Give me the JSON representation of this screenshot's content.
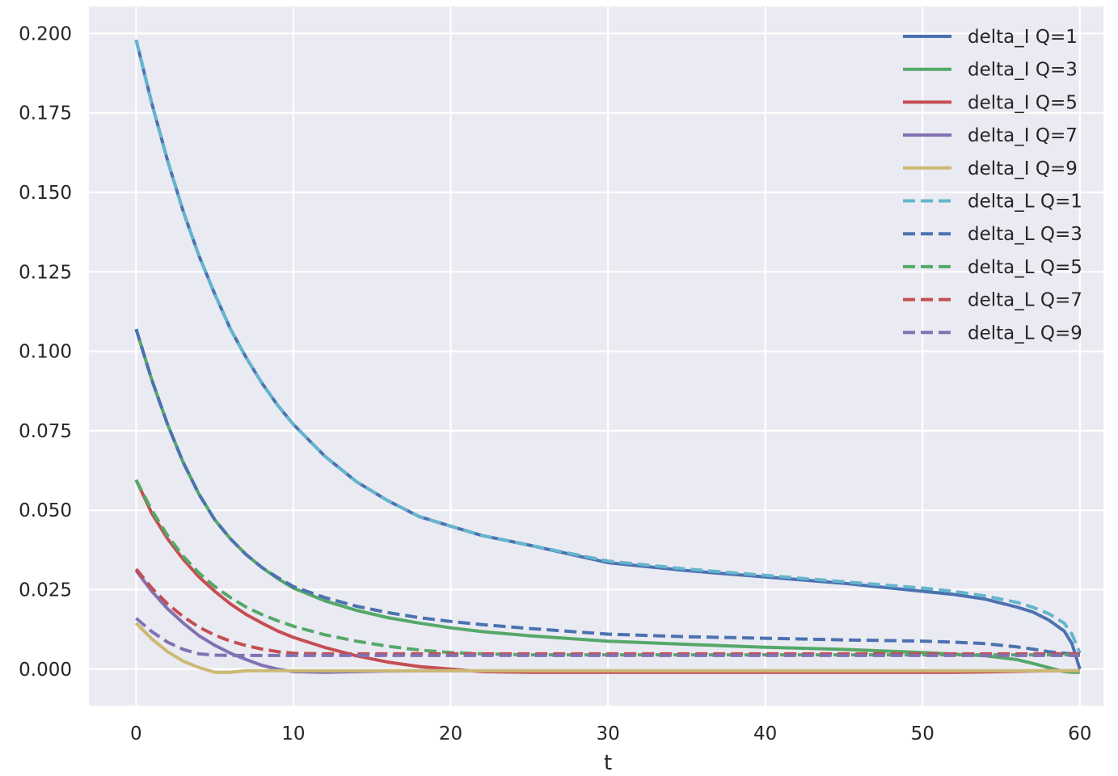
{
  "chart_data": {
    "type": "line",
    "title": "",
    "xlabel": "t",
    "ylabel": "",
    "xlim": [
      -3,
      61.5
    ],
    "ylim": [
      -0.0115,
      0.2085
    ],
    "xticks": [
      0,
      10,
      20,
      30,
      40,
      50,
      60
    ],
    "xtick_labels": [
      "0",
      "10",
      "20",
      "30",
      "40",
      "50",
      "60"
    ],
    "yticks": [
      0.0,
      0.025,
      0.05,
      0.075,
      0.1,
      0.125,
      0.15,
      0.175,
      0.2
    ],
    "ytick_labels": [
      "0.000",
      "0.025",
      "0.050",
      "0.075",
      "0.100",
      "0.125",
      "0.150",
      "0.175",
      "0.200"
    ],
    "grid": true,
    "legend_position": "top-right",
    "background": "#eaeaf2",
    "x": [
      0,
      1,
      2,
      3,
      4,
      5,
      6,
      7,
      8,
      9,
      10,
      12,
      14,
      16,
      18,
      20,
      22,
      25,
      30,
      35,
      40,
      45,
      50,
      52,
      54,
      56,
      57,
      58,
      59,
      59.5,
      60
    ],
    "series": [
      {
        "name": "delta_I Q=1",
        "color": "#4c72b0",
        "dash": "solid",
        "values": [
          0.198,
          0.178,
          0.16,
          0.144,
          0.13,
          0.118,
          0.107,
          0.098,
          0.09,
          0.083,
          0.077,
          0.067,
          0.059,
          0.053,
          0.048,
          0.045,
          0.042,
          0.039,
          0.0335,
          0.031,
          0.029,
          0.027,
          0.0245,
          0.0235,
          0.022,
          0.0195,
          0.018,
          0.0155,
          0.012,
          0.008,
          0.0
        ]
      },
      {
        "name": "delta_I Q=3",
        "color": "#55a868",
        "dash": "solid",
        "values": [
          0.107,
          0.091,
          0.077,
          0.065,
          0.055,
          0.047,
          0.041,
          0.036,
          0.032,
          0.0285,
          0.0255,
          0.0215,
          0.0185,
          0.0162,
          0.0145,
          0.013,
          0.0118,
          0.0105,
          0.0088,
          0.0078,
          0.0069,
          0.0062,
          0.0052,
          0.0047,
          0.0042,
          0.003,
          0.0018,
          0.0005,
          -0.0008,
          -0.001,
          -0.001
        ]
      },
      {
        "name": "delta_I Q=5",
        "color": "#c44e52",
        "dash": "solid",
        "values": [
          0.0595,
          0.049,
          0.041,
          0.0345,
          0.029,
          0.0245,
          0.0205,
          0.0172,
          0.0145,
          0.012,
          0.01,
          0.0068,
          0.0042,
          0.0022,
          0.0008,
          0.0,
          -0.0008,
          -0.001,
          -0.001,
          -0.001,
          -0.001,
          -0.001,
          -0.001,
          -0.001,
          -0.0009,
          -0.0007,
          -0.0006,
          -0.0005,
          -0.0005,
          -0.0005,
          -0.0005
        ]
      },
      {
        "name": "delta_I Q=7",
        "color": "#8172b2",
        "dash": "solid",
        "values": [
          0.031,
          0.0245,
          0.019,
          0.0145,
          0.0105,
          0.0075,
          0.005,
          0.003,
          0.0012,
          0.0,
          -0.0008,
          -0.001,
          -0.0008,
          -0.0006,
          -0.0005,
          -0.0005,
          -0.0005,
          -0.0005,
          -0.0005,
          -0.0005,
          -0.0005,
          -0.0005,
          -0.0005,
          -0.0005,
          -0.0005,
          -0.0005,
          -0.0005,
          -0.0005,
          -0.0005,
          -0.0005,
          -0.0005
        ]
      },
      {
        "name": "delta_I Q=9",
        "color": "#ccb974",
        "dash": "solid",
        "values": [
          0.0145,
          0.0095,
          0.0055,
          0.0025,
          0.0005,
          -0.001,
          -0.001,
          -0.0005,
          -0.0005,
          -0.0005,
          -0.0005,
          -0.0005,
          -0.0005,
          -0.0005,
          -0.0005,
          -0.0005,
          -0.0005,
          -0.0005,
          -0.0005,
          -0.0005,
          -0.0005,
          -0.0005,
          -0.0005,
          -0.0005,
          -0.0005,
          -0.0005,
          -0.0005,
          -0.0005,
          -0.0005,
          -0.0005,
          -0.0005
        ]
      },
      {
        "name": "delta_L Q=1",
        "color": "#64b5cd",
        "dash": "dashed",
        "values": [
          0.198,
          0.178,
          0.16,
          0.144,
          0.13,
          0.118,
          0.107,
          0.098,
          0.09,
          0.083,
          0.077,
          0.067,
          0.059,
          0.053,
          0.048,
          0.045,
          0.042,
          0.039,
          0.034,
          0.0315,
          0.0295,
          0.0275,
          0.0255,
          0.0245,
          0.023,
          0.021,
          0.0195,
          0.0175,
          0.0145,
          0.011,
          0.005
        ]
      },
      {
        "name": "delta_L Q=3",
        "color": "#4c72b0",
        "dash": "dashed",
        "values": [
          0.107,
          0.091,
          0.077,
          0.065,
          0.055,
          0.047,
          0.041,
          0.036,
          0.032,
          0.0288,
          0.026,
          0.0225,
          0.0198,
          0.0178,
          0.0162,
          0.015,
          0.014,
          0.0128,
          0.011,
          0.0102,
          0.0097,
          0.0092,
          0.0088,
          0.0085,
          0.008,
          0.007,
          0.0063,
          0.0055,
          0.005,
          0.0048,
          0.0045
        ]
      },
      {
        "name": "delta_L Q=5",
        "color": "#55a868",
        "dash": "dashed",
        "values": [
          0.0595,
          0.05,
          0.042,
          0.0355,
          0.0302,
          0.026,
          0.0225,
          0.0195,
          0.0172,
          0.0152,
          0.0135,
          0.0108,
          0.0088,
          0.0072,
          0.006,
          0.0052,
          0.0048,
          0.0045,
          0.0045,
          0.0045,
          0.0045,
          0.0045,
          0.0045,
          0.0045,
          0.0045,
          0.0045,
          0.0045,
          0.0045,
          0.0045,
          0.0045,
          0.0045
        ]
      },
      {
        "name": "delta_L Q=7",
        "color": "#c44e52",
        "dash": "dashed",
        "values": [
          0.0315,
          0.0255,
          0.0205,
          0.0165,
          0.0132,
          0.0107,
          0.0088,
          0.0074,
          0.0063,
          0.0055,
          0.005,
          0.0048,
          0.0048,
          0.0048,
          0.0048,
          0.0048,
          0.0048,
          0.0048,
          0.0048,
          0.0048,
          0.0048,
          0.0048,
          0.0048,
          0.0048,
          0.0048,
          0.0048,
          0.0048,
          0.0048,
          0.0048,
          0.0048,
          0.0048
        ]
      },
      {
        "name": "delta_L Q=9",
        "color": "#8172b2",
        "dash": "dashed",
        "values": [
          0.016,
          0.0118,
          0.0085,
          0.0062,
          0.0048,
          0.0044,
          0.0043,
          0.0043,
          0.0043,
          0.0043,
          0.0043,
          0.0043,
          0.0043,
          0.0043,
          0.0043,
          0.0043,
          0.0043,
          0.0043,
          0.0043,
          0.0043,
          0.0043,
          0.0043,
          0.0043,
          0.0043,
          0.0043,
          0.0043,
          0.0043,
          0.0043,
          0.0043,
          0.0043,
          0.0043
        ]
      }
    ]
  }
}
